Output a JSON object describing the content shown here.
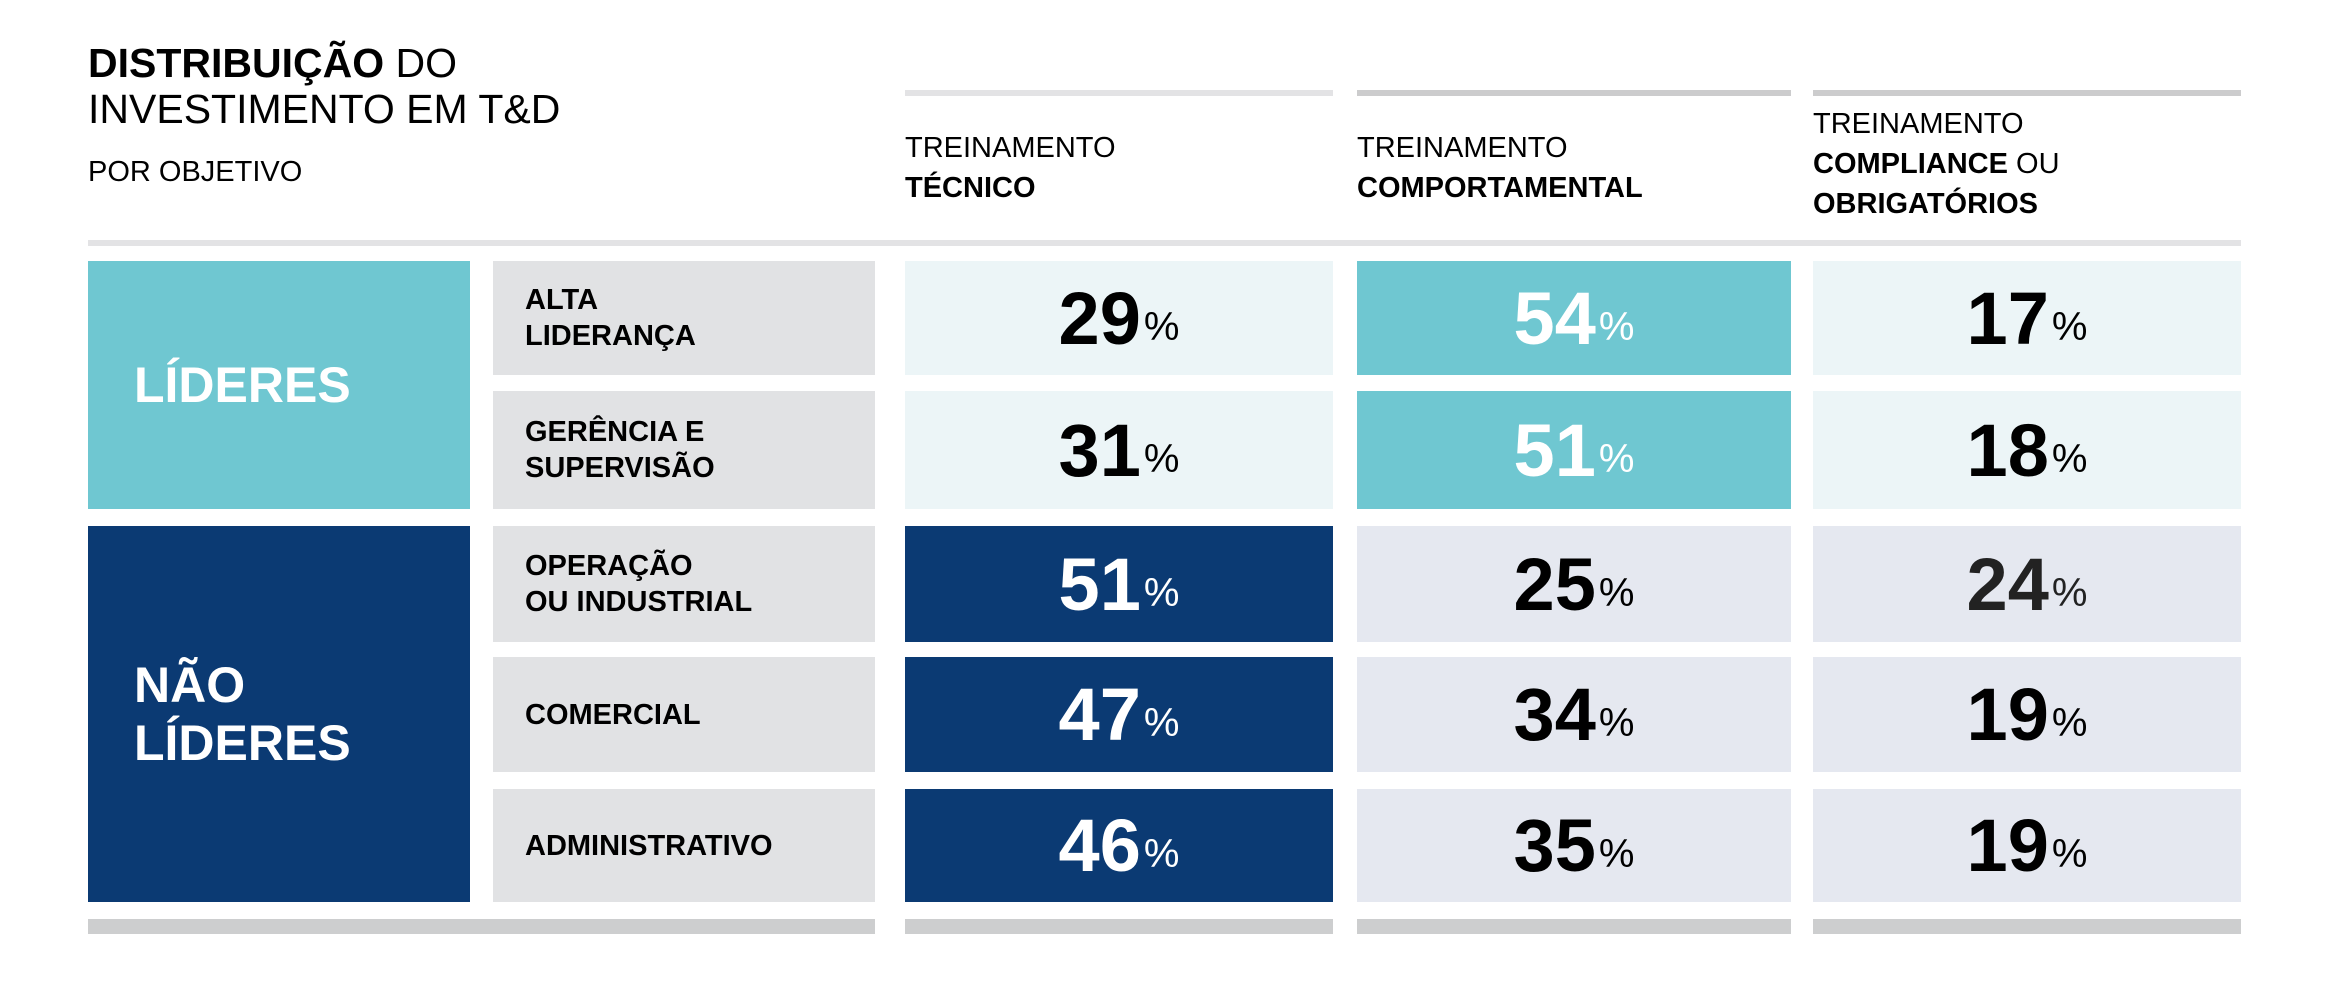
{
  "title": {
    "bold": "DISTRIBUIÇÃO",
    "rest1": " DO",
    "line2": "INVESTIMENTO EM T&D",
    "subtitle": "POR OBJETIVO"
  },
  "columns": [
    {
      "line1": "TREINAMENTO",
      "bold1": "TÉCNICO"
    },
    {
      "line1": "TREINAMENTO",
      "bold1": "COMPORTAMENTAL"
    },
    {
      "line1": "TREINAMENTO",
      "bold1": "COMPLIANCE",
      "rest": " OU",
      "bold2": "OBRIGATÓRIOS"
    }
  ],
  "groups": [
    {
      "label": "LÍDERES",
      "color": "#6fc7d1"
    },
    {
      "label_line1": "NÃO",
      "label_line2": "LÍDERES",
      "color": "#0b3a73"
    }
  ],
  "rows": [
    {
      "label_line1": "ALTA",
      "label_line2": "LIDERANÇA",
      "values": [
        "29",
        "54",
        "17"
      ]
    },
    {
      "label_line1": "GERÊNCIA E",
      "label_line2": "SUPERVISÃO",
      "values": [
        "31",
        "51",
        "18"
      ]
    },
    {
      "label_line1": "OPERAÇÃO",
      "label_line2": "OU INDUSTRIAL",
      "values": [
        "51",
        "25",
        "24"
      ]
    },
    {
      "label_line1": "COMERCIAL",
      "label_line2": "",
      "values": [
        "47",
        "34",
        "19"
      ]
    },
    {
      "label_line1": "ADMINISTRATIVO",
      "label_line2": "",
      "values": [
        "46",
        "35",
        "19"
      ]
    }
  ],
  "percent_sign": "%",
  "colors": {
    "teal": "#6fc7d1",
    "navy": "#0b3a73",
    "light_teal": "#ecf5f7",
    "light_lavender": "#e5e8f0",
    "label_gray": "#e1e2e4"
  }
}
